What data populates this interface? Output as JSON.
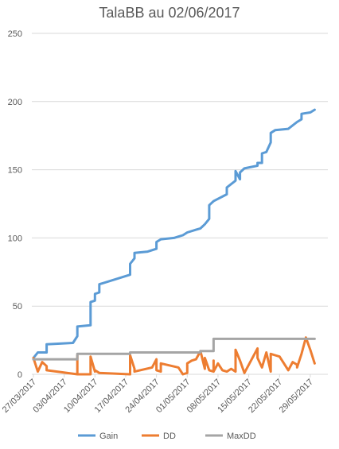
{
  "chart_data": {
    "type": "line",
    "title": "TalaBB au 02/06/2017",
    "xlabel": "",
    "ylabel": "",
    "ylim": [
      0,
      250
    ],
    "y_ticks": [
      0,
      50,
      100,
      150,
      200,
      250
    ],
    "xlim": [
      "27/03/2017",
      "02/06/2017"
    ],
    "x_tick_labels": [
      "27/03/2017",
      "03/04/2017",
      "10/04/2017",
      "17/04/2017",
      "24/04/2017",
      "01/05/2017",
      "08/05/2017",
      "15/05/2017",
      "22/05/2017",
      "29/05/2017"
    ],
    "grid": true,
    "legend_position": "bottom",
    "series": [
      {
        "name": "Gain",
        "color": "#5B9BD5",
        "points": [
          [
            "27/03/2017",
            11
          ],
          [
            "27/03/2017",
            12
          ],
          [
            "28/03/2017",
            16
          ],
          [
            "30/03/2017",
            16
          ],
          [
            "30/03/2017",
            22
          ],
          [
            "05/04/2017",
            23
          ],
          [
            "06/04/2017",
            28
          ],
          [
            "06/04/2017",
            35
          ],
          [
            "09/04/2017",
            36
          ],
          [
            "09/04/2017",
            53
          ],
          [
            "10/04/2017",
            54
          ],
          [
            "10/04/2017",
            59
          ],
          [
            "11/04/2017",
            60
          ],
          [
            "11/04/2017",
            66
          ],
          [
            "18/04/2017",
            73
          ],
          [
            "18/04/2017",
            81
          ],
          [
            "19/04/2017",
            85
          ],
          [
            "19/04/2017",
            89
          ],
          [
            "22/04/2017",
            90
          ],
          [
            "23/04/2017",
            91
          ],
          [
            "24/04/2017",
            92
          ],
          [
            "24/04/2017",
            97
          ],
          [
            "25/04/2017",
            99
          ],
          [
            "28/04/2017",
            100
          ],
          [
            "29/04/2017",
            101
          ],
          [
            "30/04/2017",
            102
          ],
          [
            "01/05/2017",
            104
          ],
          [
            "03/05/2017",
            106
          ],
          [
            "04/05/2017",
            107
          ],
          [
            "05/05/2017",
            110
          ],
          [
            "06/05/2017",
            114
          ],
          [
            "06/05/2017",
            124
          ],
          [
            "07/05/2017",
            127
          ],
          [
            "10/05/2017",
            132
          ],
          [
            "10/05/2017",
            137
          ],
          [
            "12/05/2017",
            142
          ],
          [
            "12/05/2017",
            149
          ],
          [
            "13/05/2017",
            143
          ],
          [
            "13/05/2017",
            148
          ],
          [
            "14/05/2017",
            151
          ],
          [
            "17/05/2017",
            153
          ],
          [
            "17/05/2017",
            155
          ],
          [
            "18/05/2017",
            155
          ],
          [
            "18/05/2017",
            162
          ],
          [
            "19/05/2017",
            163
          ],
          [
            "20/05/2017",
            170
          ],
          [
            "20/05/2017",
            177
          ],
          [
            "21/05/2017",
            179
          ],
          [
            "24/05/2017",
            180
          ],
          [
            "26/05/2017",
            185
          ],
          [
            "27/05/2017",
            187
          ],
          [
            "27/05/2017",
            191
          ],
          [
            "29/05/2017",
            192
          ],
          [
            "30/05/2017",
            194
          ]
        ]
      },
      {
        "name": "DD",
        "color": "#ED7D31",
        "points": [
          [
            "27/03/2017",
            12
          ],
          [
            "28/03/2017",
            2
          ],
          [
            "29/03/2017",
            9
          ],
          [
            "30/03/2017",
            6
          ],
          [
            "30/03/2017",
            3
          ],
          [
            "06/04/2017",
            0
          ],
          [
            "06/04/2017",
            14
          ],
          [
            "06/04/2017",
            0
          ],
          [
            "09/04/2017",
            0
          ],
          [
            "09/04/2017",
            13
          ],
          [
            "10/04/2017",
            2
          ],
          [
            "10/04/2017",
            3
          ],
          [
            "11/04/2017",
            1
          ],
          [
            "18/04/2017",
            0
          ],
          [
            "18/04/2017",
            14
          ],
          [
            "19/04/2017",
            4
          ],
          [
            "19/04/2017",
            2
          ],
          [
            "23/04/2017",
            5
          ],
          [
            "24/04/2017",
            11
          ],
          [
            "24/04/2017",
            3
          ],
          [
            "25/04/2017",
            2
          ],
          [
            "25/04/2017",
            8
          ],
          [
            "29/04/2017",
            5
          ],
          [
            "30/04/2017",
            0
          ],
          [
            "01/05/2017",
            1
          ],
          [
            "01/05/2017",
            8
          ],
          [
            "02/05/2017",
            10
          ],
          [
            "03/05/2017",
            11
          ],
          [
            "04/05/2017",
            17
          ],
          [
            "05/05/2017",
            4
          ],
          [
            "05/05/2017",
            12
          ],
          [
            "06/05/2017",
            3
          ],
          [
            "07/05/2017",
            2
          ],
          [
            "07/05/2017",
            10
          ],
          [
            "07/05/2017",
            2
          ],
          [
            "08/05/2017",
            8
          ],
          [
            "09/05/2017",
            3
          ],
          [
            "10/05/2017",
            2
          ],
          [
            "11/05/2017",
            4
          ],
          [
            "12/05/2017",
            2
          ],
          [
            "12/05/2017",
            18
          ],
          [
            "13/05/2017",
            10
          ],
          [
            "14/05/2017",
            1
          ],
          [
            "17/05/2017",
            19
          ],
          [
            "17/05/2017",
            12
          ],
          [
            "18/05/2017",
            5
          ],
          [
            "19/05/2017",
            16
          ],
          [
            "20/05/2017",
            2
          ],
          [
            "20/05/2017",
            15
          ],
          [
            "21/05/2017",
            14
          ],
          [
            "22/05/2017",
            13
          ],
          [
            "24/05/2017",
            3
          ],
          [
            "25/05/2017",
            9
          ],
          [
            "26/05/2017",
            7
          ],
          [
            "26/05/2017",
            5
          ],
          [
            "27/05/2017",
            15
          ],
          [
            "28/05/2017",
            27
          ],
          [
            "29/05/2017",
            18
          ],
          [
            "30/05/2017",
            8
          ]
        ]
      },
      {
        "name": "MaxDD",
        "color": "#A5A5A5",
        "points": [
          [
            "27/03/2017",
            11
          ],
          [
            "06/04/2017",
            11
          ],
          [
            "06/04/2017",
            15
          ],
          [
            "18/04/2017",
            15
          ],
          [
            "18/04/2017",
            16
          ],
          [
            "04/05/2017",
            16
          ],
          [
            "04/05/2017",
            17
          ],
          [
            "07/05/2017",
            17
          ],
          [
            "07/05/2017",
            26
          ],
          [
            "30/05/2017",
            26
          ]
        ]
      }
    ]
  }
}
